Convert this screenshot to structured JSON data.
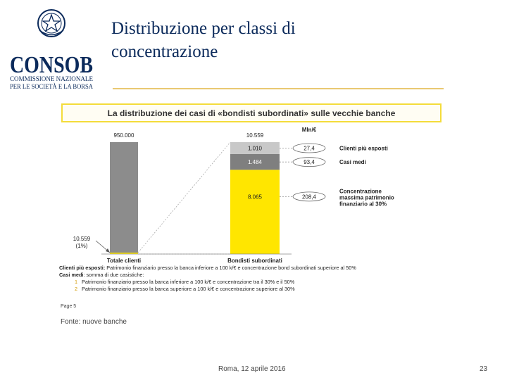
{
  "slide": {
    "title_line1": "Distribuzione per classi di",
    "title_line2": "concentrazione",
    "source": "Fonte: nuove banche",
    "footer_center": "Roma, 12 aprile 2016",
    "page_number": "23",
    "accent_color": "#0b2a5b"
  },
  "logo": {
    "wordmark": "CONSOB",
    "subtitle_line1": "COMMISSIONE NAZIONALE",
    "subtitle_line2": "PER LE SOCIETÀ E LA BORSA",
    "icon": "star-emblem-icon"
  },
  "chart_data": {
    "type": "bar",
    "title": "La distribuzione dei casi di «bondisti subordinati» sulle vecchie banche",
    "unit_label": "Mln/€",
    "categories": [
      "Totale clienti",
      "Bondisti subordinati"
    ],
    "totals": [
      "950.000",
      "10.559"
    ],
    "total_clients_bar": {
      "value": 950000,
      "color": "#8c8c8c"
    },
    "subset_callout": {
      "label_line1": "10.559",
      "label_line2": "(1%)"
    },
    "stacked_segments": [
      {
        "label": "Clienti più esposti",
        "value_text": "1.010",
        "value": 1010,
        "mln": "27,4",
        "color": "#c8c8c8"
      },
      {
        "label": "Casi medi",
        "value_text": "1.484",
        "value": 1484,
        "mln": "93,4",
        "color": "#7f7f7f"
      },
      {
        "label_lines": [
          "Concentrazione",
          "massima patrimonio",
          "finanziario al 30%"
        ],
        "value_text": "8.065",
        "value": 8065,
        "mln": "208,4",
        "color": "#ffe600"
      }
    ],
    "colors": {
      "banner_border": "#f4dc3a",
      "yellow": "#ffe600"
    }
  },
  "notes": {
    "line1_bold": "Clienti più esposti:",
    "line1_text": " Patrimonio finanziario presso la banca inferiore a 100 k/€ e concentrazione bond subordinati superiore al 50%",
    "line2_bold": "Casi medi",
    "line2_text": ": somma di due casistiche:",
    "items": [
      {
        "num": "1",
        "text": "Patrimonio finanziario presso la banca inferiore a 100 k/€ e concentrazione tra il 30% e il 50%"
      },
      {
        "num": "2",
        "text": "Patrimonio finanziario presso la banca superiore a 100 k/€ e concentrazione superiore al 30%"
      }
    ],
    "page_ref": "Page 5"
  }
}
